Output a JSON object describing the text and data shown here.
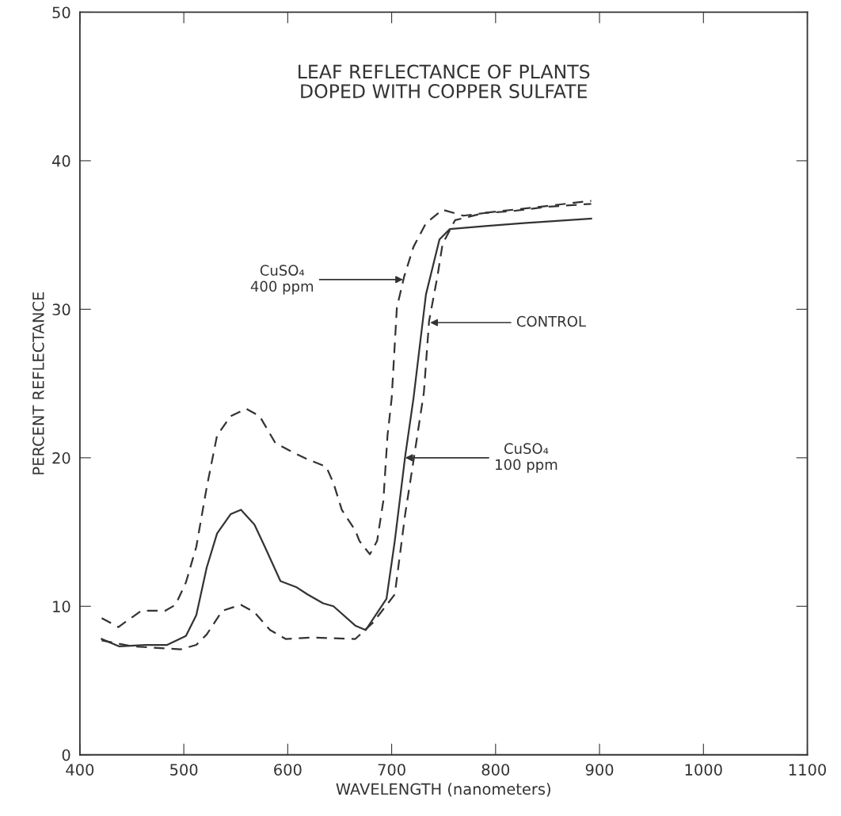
{
  "chart_data": {
    "type": "line",
    "title": "LEAF REFLECTANCE OF PLANTS\nDOPED WITH COPPER SULFATE",
    "xlabel": "WAVELENGTH (nanometers)",
    "ylabel": "PERCENT REFLECTANCE",
    "xlim": [
      400,
      1100
    ],
    "xticks": [
      400,
      500,
      600,
      700,
      800,
      900,
      1000,
      1100
    ],
    "ylim": [
      0,
      50
    ],
    "yticks": [
      0,
      10,
      20,
      30,
      40,
      50
    ],
    "grid": false,
    "series": [
      {
        "color": "#333333",
        "line_style": "dashed",
        "x": [
          421,
          437,
          459,
          482,
          492,
          502,
          512,
          522,
          532,
          545,
          560,
          573,
          588,
          604,
          619,
          637,
          644,
          652,
          665,
          669,
          679,
          686,
          692,
          696,
          700,
          705,
          712,
          721,
          733,
          749,
          769,
          792,
          815,
          850,
          892
        ],
        "values": [
          9.2,
          8.6,
          9.7,
          9.7,
          10.1,
          11.6,
          14.0,
          18.0,
          21.5,
          22.8,
          23.3,
          22.8,
          21.0,
          20.4,
          19.9,
          19.4,
          18.3,
          16.5,
          15.1,
          14.4,
          13.5,
          14.4,
          17.1,
          21.5,
          24.0,
          30.1,
          32.2,
          34.2,
          35.8,
          36.7,
          36.3,
          36.5,
          36.6,
          36.9,
          37.1
        ]
      },
      {
        "color": "#333333",
        "line_style": "solid",
        "x": [
          421,
          438,
          463,
          484,
          502,
          512,
          522,
          532,
          545,
          555,
          568,
          578,
          593,
          608,
          619,
          634,
          644,
          665,
          675,
          695,
          703,
          713,
          721,
          733,
          746,
          756,
          790,
          827,
          892
        ],
        "values": [
          7.8,
          7.3,
          7.4,
          7.4,
          8.0,
          9.4,
          12.6,
          14.9,
          16.2,
          16.5,
          15.5,
          14.0,
          11.7,
          11.3,
          10.8,
          10.2,
          10.0,
          8.7,
          8.4,
          10.5,
          14.4,
          20.1,
          24.0,
          31.0,
          34.7,
          35.4,
          35.6,
          35.8,
          36.1
        ]
      },
      {
        "color": "#333333",
        "line_style": "dashed",
        "x": [
          421,
          451,
          497,
          512,
          522,
          537,
          555,
          568,
          583,
          598,
          624,
          665,
          682,
          703,
          713,
          721,
          731,
          736,
          744,
          749,
          761,
          790,
          830,
          892
        ],
        "values": [
          7.7,
          7.3,
          7.1,
          7.4,
          8.1,
          9.7,
          10.1,
          9.6,
          8.4,
          7.8,
          7.9,
          7.8,
          8.9,
          10.8,
          16.2,
          19.8,
          24.4,
          29.2,
          32.2,
          34.4,
          36.0,
          36.5,
          36.8,
          37.3
        ]
      }
    ],
    "annotations": [
      {
        "text": "CuSO₄\n400 ppm",
        "x": 711,
        "y": 32.0
      },
      {
        "text": "CONTROL",
        "x": 737,
        "y": 29.1
      },
      {
        "text": "CuSO₄\n100 ppm",
        "x": 713,
        "y": 20.0
      }
    ]
  }
}
